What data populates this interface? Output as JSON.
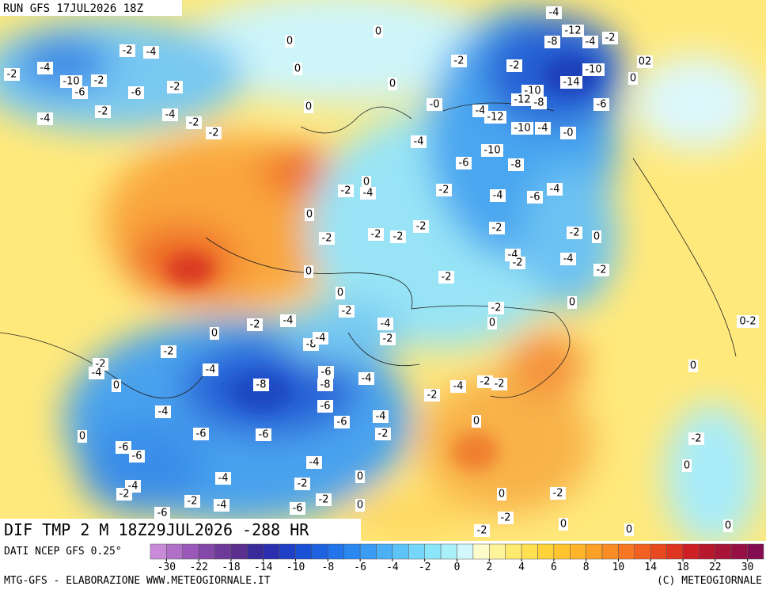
{
  "header": {
    "run": "RUN GFS 17JUL2026 18Z"
  },
  "map": {
    "title": "DIF TMP 2 M 18Z29JUL2026 -288 HR",
    "labels": [
      "-4",
      "-12",
      "-8",
      "-4",
      "-2",
      "0",
      "0",
      "02",
      "-2",
      "-2",
      "-10",
      "0",
      "-2",
      "-4",
      "-4",
      "-2",
      "-10",
      "-2",
      "-6",
      "-14",
      "0",
      "-2",
      "-6",
      "0",
      "-10",
      "-12",
      "-8",
      "-6",
      "-2",
      "-4",
      "0",
      "-0",
      "-4",
      "-12",
      "-4",
      "-2",
      "-2",
      "-10",
      "-4",
      "-0",
      "-4",
      "-10",
      "-6",
      "-8",
      "0",
      "-2",
      "-4",
      "-2",
      "-4",
      "-6",
      "-4",
      "0",
      "-2",
      "-2",
      "-2",
      "-2",
      "-2",
      "-2",
      "0",
      "-4",
      "-2",
      "-4",
      "-2",
      "0",
      "-2",
      "0",
      "-2",
      "0",
      "-2",
      "0",
      "-2",
      "-4",
      "-4",
      "0-2",
      "0",
      "-2",
      "-8",
      "-4",
      "-2",
      "-2",
      "-4",
      "-4",
      "-6",
      "-4",
      "0",
      "0",
      "-8",
      "-8",
      "-2",
      "-4",
      "-2",
      "-2",
      "-4",
      "-6",
      "-4",
      "-6",
      "0",
      "-6",
      "-6",
      "-2",
      "0",
      "-2",
      "-6",
      "-6",
      "-4",
      "0",
      "-4",
      "-2",
      "-4",
      "-2",
      "0",
      "-6",
      "-2",
      "-4",
      "-6",
      "-2",
      "0",
      "0",
      "-2",
      "-2",
      "0",
      "0",
      "0",
      "-2"
    ]
  },
  "legend": {
    "source": "DATI NCEP GFS 0.25°",
    "ticks": [
      -30,
      -22,
      -18,
      -14,
      -10,
      -8,
      -6,
      -4,
      -2,
      0,
      2,
      4,
      6,
      8,
      10,
      14,
      18,
      22,
      30
    ],
    "colors": [
      "#c98ad8",
      "#b070c8",
      "#9a58b8",
      "#8448a8",
      "#6e3a9a",
      "#5a2f8e",
      "#3a2a9a",
      "#2a30b0",
      "#1f3fc4",
      "#1a50d4",
      "#1e62e0",
      "#2274ea",
      "#2a88f0",
      "#3a9cf4",
      "#4cb0f6",
      "#5ec4f8",
      "#74d6f9",
      "#8ce6fa",
      "#aaf0fb",
      "#d2f8fc",
      "#fffccc",
      "#fff39a",
      "#ffea70",
      "#ffe050",
      "#ffd23a",
      "#ffc430",
      "#ffb42a",
      "#fda028",
      "#fa8c26",
      "#f67624",
      "#f06022",
      "#e84a20",
      "#de3420",
      "#ce2024",
      "#b8182e",
      "#a81438",
      "#961044",
      "#840c50"
    ]
  },
  "footer": {
    "left": "MTG-GFS - ELABORAZIONE WWW.METEOGIORNALE.IT",
    "right": "(C) METEOGIORNALE"
  }
}
